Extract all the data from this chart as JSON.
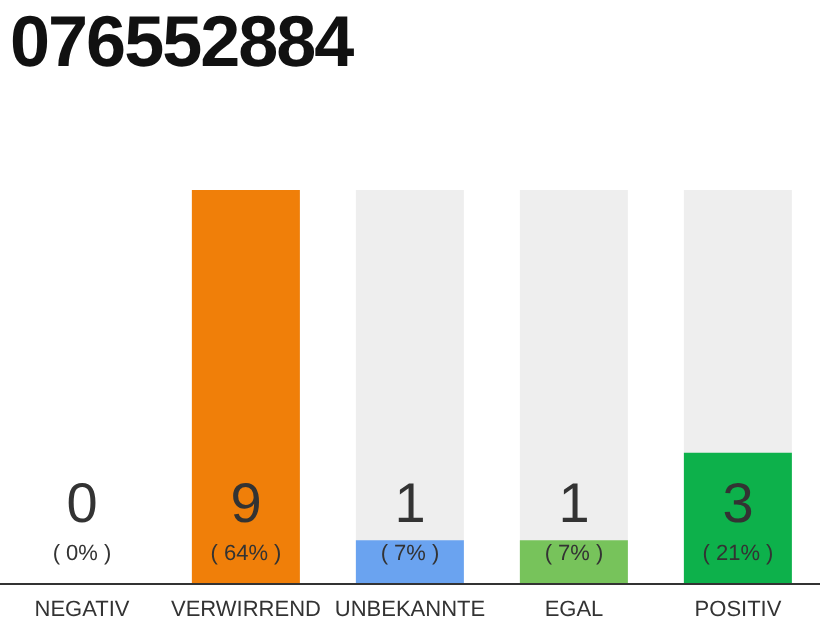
{
  "chart_data": {
    "type": "bar",
    "title": "076552884",
    "categories": [
      "NEGATIV",
      "VERWIRREND",
      "UNBEKANNTE",
      "EGAL",
      "POSITIV"
    ],
    "values": [
      0,
      9,
      1,
      1,
      3
    ],
    "colors": [
      "#e53935",
      "#f07f09",
      "#6aa3f0",
      "#77c35b",
      "#0db14b"
    ],
    "value_labels": [
      "0\n( 0% )",
      "9\n( 64% )",
      "1\n( 7% )",
      "1\n( 7% )",
      "3\n( 21% )"
    ],
    "grid": false,
    "legend": false
  }
}
